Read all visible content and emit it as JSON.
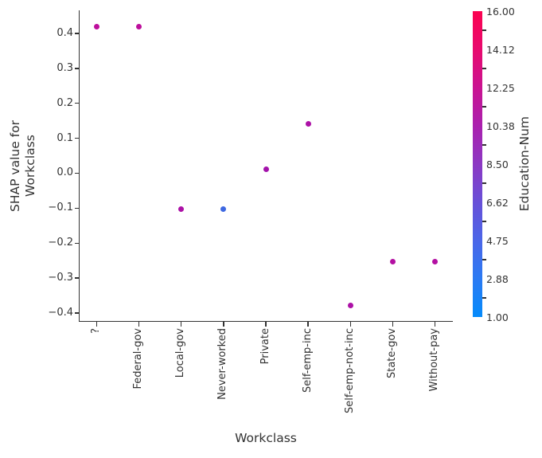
{
  "chart_data": {
    "type": "scatter",
    "title": "",
    "xlabel": "Workclass",
    "ylabel": "SHAP value for\nWorkclass",
    "grid": false,
    "legend": null,
    "categories": [
      "?",
      "Federal-gov",
      "Local-gov",
      "Never-worked",
      "Private",
      "Self-emp-inc",
      "Self-emp-not-inc",
      "State-gov",
      "Without-pay"
    ],
    "points": [
      {
        "category": "?",
        "shap": 0.419,
        "color": "#bd0f9c"
      },
      {
        "category": "Federal-gov",
        "shap": 0.419,
        "color": "#bd0f9c"
      },
      {
        "category": "Local-gov",
        "shap": -0.103,
        "color": "#ac11a6"
      },
      {
        "category": "Never-worked",
        "shap": -0.103,
        "color": "#3e68e1"
      },
      {
        "category": "Private",
        "shap": 0.012,
        "color": "#a312ab"
      },
      {
        "category": "Self-emp-inc",
        "shap": 0.141,
        "color": "#ac11a6"
      },
      {
        "category": "Self-emp-not-inc",
        "shap": -0.379,
        "color": "#ac11a6"
      },
      {
        "category": "State-gov",
        "shap": -0.252,
        "color": "#b310a2"
      },
      {
        "category": "Without-pay",
        "shap": -0.252,
        "color": "#b310a2"
      }
    ],
    "yticks": [
      {
        "label": "0.4",
        "value": 0.4
      },
      {
        "label": "0.3",
        "value": 0.3
      },
      {
        "label": "0.2",
        "value": 0.2
      },
      {
        "label": "0.1",
        "value": 0.1
      },
      {
        "label": "0.0",
        "value": 0.0
      },
      {
        "label": "−0.1",
        "value": -0.1
      },
      {
        "label": "−0.2",
        "value": -0.2
      },
      {
        "label": "−0.3",
        "value": -0.3
      },
      {
        "label": "−0.4",
        "value": -0.4
      }
    ],
    "ylim": [
      -0.423,
      0.464
    ],
    "colorbar": {
      "label": "Education-Num",
      "min": 1.0,
      "max": 16.0,
      "tick_labels": [
        "16.00",
        "14.12",
        "12.25",
        "10.38",
        "8.50",
        "6.62",
        "4.75",
        "2.88",
        "1.00"
      ],
      "gradient_bottom_to_top": [
        "#058bfb",
        "#2b7af3",
        "#4b66e8",
        "#6850d8",
        "#8c38c3",
        "#aa20ae",
        "#ca1391",
        "#e80a6e",
        "#fb0351"
      ]
    }
  }
}
